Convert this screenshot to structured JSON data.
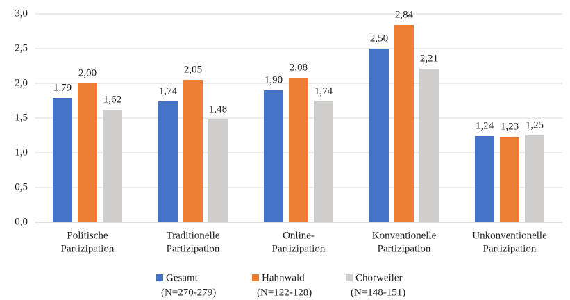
{
  "chart_data": {
    "type": "bar",
    "categories": [
      [
        "Politische",
        "Partizipation"
      ],
      [
        "Traditionelle",
        "Partizipation"
      ],
      [
        "Online-",
        "Partizipation"
      ],
      [
        "Konventionelle",
        "Partizipation"
      ],
      [
        "Unkonventionelle",
        "Partizipation"
      ]
    ],
    "series": [
      {
        "name": [
          "Gesamt",
          "(N=270-279)"
        ],
        "color": "#4472c4",
        "values": [
          1.79,
          1.74,
          1.9,
          2.5,
          1.24
        ],
        "value_labels": [
          "1,79",
          "1,74",
          "1,90",
          "2,50",
          "1,24"
        ]
      },
      {
        "name": [
          "Hahnwald",
          "(N=122-128)"
        ],
        "color": "#ed7d31",
        "values": [
          2.0,
          2.05,
          2.08,
          2.84,
          1.23
        ],
        "value_labels": [
          "2,00",
          "2,05",
          "2,08",
          "2,84",
          "1,23"
        ]
      },
      {
        "name": [
          "Chorweiler",
          "(N=148-151)"
        ],
        "color": "#cfcecd",
        "values": [
          1.62,
          1.48,
          1.74,
          2.21,
          1.25
        ],
        "value_labels": [
          "1,62",
          "1,48",
          "1,74",
          "2,21",
          "1,25"
        ]
      }
    ],
    "ylim": [
      0,
      3
    ],
    "yticks": [
      {
        "value": 0,
        "label": "0,0"
      },
      {
        "value": 0.5,
        "label": "0,5"
      },
      {
        "value": 1,
        "label": "1,0"
      },
      {
        "value": 1.5,
        "label": "1,5"
      },
      {
        "value": 2,
        "label": "2,0"
      },
      {
        "value": 2.5,
        "label": "2,5"
      },
      {
        "value": 3,
        "label": "3,0"
      }
    ],
    "grid": true,
    "legend": "bottom"
  }
}
